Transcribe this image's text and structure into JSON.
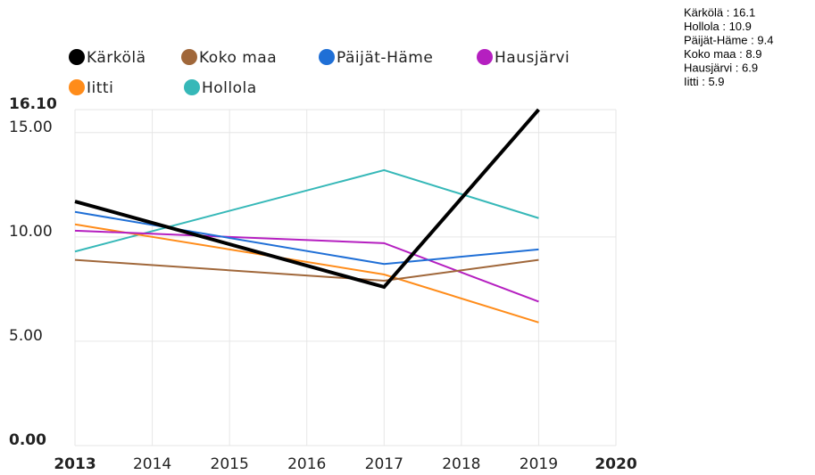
{
  "chart_data": {
    "type": "line",
    "x": [
      2013,
      2017,
      2019
    ],
    "series": [
      {
        "name": "Kärkölä",
        "color": "#000000",
        "values": [
          11.7,
          7.6,
          16.1
        ]
      },
      {
        "name": "Koko maa",
        "color": "#a0673a",
        "values": [
          8.9,
          7.9,
          8.9
        ]
      },
      {
        "name": "Päijät-Häme",
        "color": "#1f6fd6",
        "values": [
          11.2,
          8.7,
          9.4
        ]
      },
      {
        "name": "Hausjärvi",
        "color": "#b51fc0",
        "values": [
          10.3,
          9.7,
          6.9
        ]
      },
      {
        "name": "Iitti",
        "color": "#ff8c1a",
        "values": [
          10.6,
          8.2,
          5.9
        ]
      },
      {
        "name": "Hollola",
        "color": "#36b8b8",
        "values": [
          9.3,
          13.2,
          10.9
        ]
      }
    ],
    "xlim": [
      2013,
      2020
    ],
    "xticks": [
      2013,
      2014,
      2015,
      2016,
      2017,
      2018,
      2019,
      2020
    ],
    "ylim": [
      0,
      16.1
    ],
    "yticks": [
      {
        "value": 0,
        "label": "0.00"
      },
      {
        "value": 5,
        "label": "5.00"
      },
      {
        "value": 10,
        "label": "10.00"
      },
      {
        "value": 15,
        "label": "15.00"
      },
      {
        "value": 16.1,
        "label": "16.10"
      }
    ],
    "grid": true,
    "summary_lines": [
      "Kärkölä : 16.1",
      "Hollola : 10.9",
      "Päijät-Häme : 9.4",
      "Koko maa : 8.9",
      "Hausjärvi : 6.9",
      "Iitti : 5.9"
    ]
  }
}
